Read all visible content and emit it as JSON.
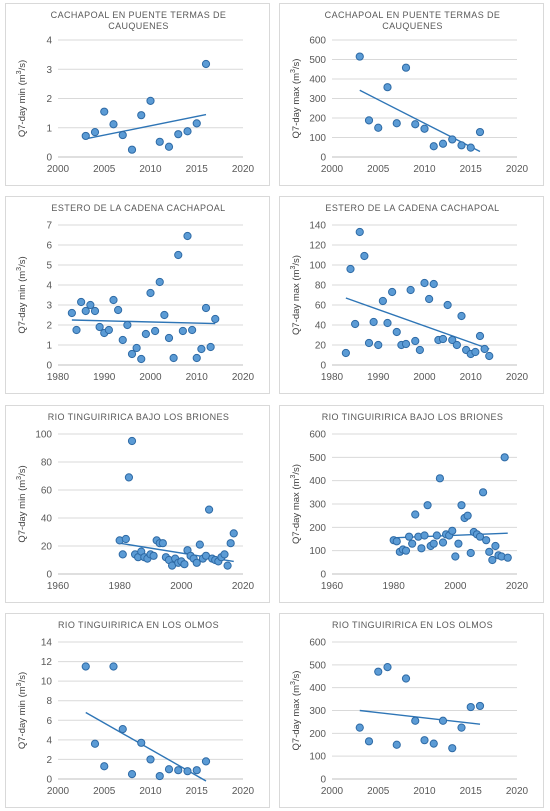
{
  "chart_data": [
    {
      "type": "scatter",
      "title_lines": [
        "CACHAPOAL EN PUENTE TERMAS DE",
        "CAUQUENES"
      ],
      "ylabel_prefix": "Q7-day min (m",
      "ylabel_sup": "3",
      "ylabel_suffix": "/s)",
      "xlim": [
        2000,
        2020
      ],
      "xticks": [
        "2000",
        "2005",
        "2010",
        "2015",
        "2020"
      ],
      "ylim": [
        0,
        4
      ],
      "yticks": [
        "0",
        "1",
        "2",
        "3",
        "4"
      ],
      "grid": true,
      "trendline": true,
      "points": [
        [
          2003,
          0.72
        ],
        [
          2004,
          0.85
        ],
        [
          2005,
          1.55
        ],
        [
          2006,
          1.12
        ],
        [
          2007,
          0.75
        ],
        [
          2008,
          0.25
        ],
        [
          2009,
          1.43
        ],
        [
          2010,
          1.92
        ],
        [
          2011,
          0.52
        ],
        [
          2012,
          0.35
        ],
        [
          2013,
          0.78
        ],
        [
          2014,
          0.88
        ],
        [
          2015,
          1.15
        ],
        [
          2016,
          3.18
        ]
      ],
      "trend": [
        [
          2003,
          0.62
        ],
        [
          2016,
          1.45
        ]
      ]
    },
    {
      "type": "scatter",
      "title_lines": [
        "CACHAPOAL EN PUENTE TERMAS DE",
        "CAUQUENES"
      ],
      "ylabel_prefix": "Q7-day max (m",
      "ylabel_sup": "3",
      "ylabel_suffix": "/s)",
      "xlim": [
        2000,
        2020
      ],
      "xticks": [
        "2000",
        "2005",
        "2010",
        "2015",
        "2020"
      ],
      "ylim": [
        0,
        600
      ],
      "yticks": [
        "0",
        "100",
        "200",
        "300",
        "400",
        "500",
        "600"
      ],
      "grid": true,
      "trendline": true,
      "points": [
        [
          2003,
          515
        ],
        [
          2004,
          188
        ],
        [
          2005,
          150
        ],
        [
          2006,
          358
        ],
        [
          2007,
          173
        ],
        [
          2008,
          458
        ],
        [
          2009,
          168
        ],
        [
          2010,
          145
        ],
        [
          2011,
          55
        ],
        [
          2012,
          68
        ],
        [
          2013,
          90
        ],
        [
          2014,
          60
        ],
        [
          2015,
          48
        ],
        [
          2016,
          128
        ]
      ],
      "trend": [
        [
          2003,
          342
        ],
        [
          2016,
          28
        ]
      ]
    },
    {
      "type": "scatter",
      "title_lines": [
        "ESTERO DE LA CADENA CACHAPOAL"
      ],
      "ylabel_prefix": "Q7-day min (m",
      "ylabel_sup": "3",
      "ylabel_suffix": "/s)",
      "xlim": [
        1980,
        2020
      ],
      "xticks": [
        "1980",
        "1990",
        "2000",
        "2010",
        "2020"
      ],
      "ylim": [
        0,
        7
      ],
      "yticks": [
        "0",
        "1",
        "2",
        "3",
        "4",
        "5",
        "6",
        "7"
      ],
      "grid": true,
      "trendline": true,
      "points": [
        [
          1983,
          2.6
        ],
        [
          1984,
          1.75
        ],
        [
          1985,
          3.15
        ],
        [
          1986,
          2.7
        ],
        [
          1987,
          3.0
        ],
        [
          1988,
          2.7
        ],
        [
          1989,
          1.9
        ],
        [
          1990,
          1.6
        ],
        [
          1991,
          1.75
        ],
        [
          1992,
          3.25
        ],
        [
          1993,
          2.75
        ],
        [
          1994,
          1.25
        ],
        [
          1995,
          2.0
        ],
        [
          1996,
          0.55
        ],
        [
          1997,
          0.85
        ],
        [
          1998,
          0.3
        ],
        [
          1999,
          1.55
        ],
        [
          2000,
          3.6
        ],
        [
          2001,
          1.7
        ],
        [
          2002,
          4.15
        ],
        [
          2003,
          2.5
        ],
        [
          2004,
          1.35
        ],
        [
          2005,
          0.35
        ],
        [
          2006,
          5.5
        ],
        [
          2007,
          1.7
        ],
        [
          2008,
          6.45
        ],
        [
          2009,
          1.75
        ],
        [
          2010,
          0.35
        ],
        [
          2011,
          0.8
        ],
        [
          2012,
          2.85
        ],
        [
          2013,
          0.9
        ],
        [
          2014,
          2.3
        ]
      ],
      "trend": [
        [
          1983,
          2.25
        ],
        [
          2014,
          2.07
        ]
      ]
    },
    {
      "type": "scatter",
      "title_lines": [
        "ESTERO DE LA CADENA CACHAPOAL"
      ],
      "ylabel_prefix": "Q7-day max (m",
      "ylabel_sup": "3",
      "ylabel_suffix": "/s)",
      "xlim": [
        1980,
        2020
      ],
      "xticks": [
        "1980",
        "1990",
        "2000",
        "2010",
        "2020"
      ],
      "ylim": [
        0,
        140
      ],
      "yticks": [
        "0",
        "20",
        "40",
        "60",
        "80",
        "100",
        "120",
        "140"
      ],
      "grid": true,
      "trendline": true,
      "points": [
        [
          1983,
          12
        ],
        [
          1984,
          96
        ],
        [
          1985,
          41
        ],
        [
          1986,
          133
        ],
        [
          1987,
          109
        ],
        [
          1988,
          22
        ],
        [
          1989,
          43
        ],
        [
          1990,
          20
        ],
        [
          1991,
          64
        ],
        [
          1992,
          42
        ],
        [
          1993,
          73
        ],
        [
          1994,
          33
        ],
        [
          1995,
          20
        ],
        [
          1996,
          21
        ],
        [
          1997,
          75
        ],
        [
          1998,
          24
        ],
        [
          1999,
          15
        ],
        [
          2000,
          82
        ],
        [
          2001,
          66
        ],
        [
          2002,
          81
        ],
        [
          2003,
          25
        ],
        [
          2004,
          26
        ],
        [
          2005,
          60
        ],
        [
          2006,
          25
        ],
        [
          2007,
          20
        ],
        [
          2008,
          49
        ],
        [
          2009,
          15
        ],
        [
          2010,
          11
        ],
        [
          2011,
          13
        ],
        [
          2012,
          29
        ],
        [
          2013,
          16
        ],
        [
          2014,
          9
        ]
      ],
      "trend": [
        [
          1983,
          67
        ],
        [
          2014,
          16
        ]
      ]
    },
    {
      "type": "scatter",
      "title_lines": [
        "RIO TINGUIRIRICA BAJO LOS BRIONES"
      ],
      "ylabel_prefix": "Q7-day min (m",
      "ylabel_sup": "3",
      "ylabel_suffix": "/s)",
      "xlim": [
        1960,
        2020
      ],
      "xticks": [
        "1960",
        "1980",
        "2000",
        "2020"
      ],
      "ylim": [
        0,
        100
      ],
      "yticks": [
        "0",
        "20",
        "40",
        "60",
        "80",
        "100"
      ],
      "grid": true,
      "trendline": true,
      "points": [
        [
          1980,
          24
        ],
        [
          1981,
          14
        ],
        [
          1982,
          25
        ],
        [
          1983,
          69
        ],
        [
          1984,
          95
        ],
        [
          1985,
          14
        ],
        [
          1986,
          12
        ],
        [
          1987,
          16
        ],
        [
          1988,
          12
        ],
        [
          1989,
          11
        ],
        [
          1990,
          14
        ],
        [
          1991,
          13
        ],
        [
          1992,
          24
        ],
        [
          1993,
          22
        ],
        [
          1994,
          22
        ],
        [
          1995,
          12
        ],
        [
          1996,
          10
        ],
        [
          1997,
          6
        ],
        [
          1998,
          11
        ],
        [
          1999,
          8
        ],
        [
          2000,
          9
        ],
        [
          2001,
          7
        ],
        [
          2002,
          17
        ],
        [
          2003,
          13
        ],
        [
          2004,
          11
        ],
        [
          2005,
          8
        ],
        [
          2006,
          21
        ],
        [
          2007,
          11
        ],
        [
          2008,
          13
        ],
        [
          2009,
          46
        ],
        [
          2010,
          11
        ],
        [
          2011,
          10
        ],
        [
          2012,
          9
        ],
        [
          2013,
          12
        ],
        [
          2014,
          14
        ],
        [
          2015,
          6
        ],
        [
          2016,
          22
        ],
        [
          2017,
          29
        ]
      ],
      "trend": [
        [
          1980,
          22
        ],
        [
          2017,
          9
        ]
      ]
    },
    {
      "type": "scatter",
      "title_lines": [
        "RIO TINGUIRIRICA BAJO LOS BRIONES"
      ],
      "ylabel_prefix": "Q7-day max (m",
      "ylabel_sup": "3",
      "ylabel_suffix": "/s)",
      "xlim": [
        1960,
        2020
      ],
      "xticks": [
        "1960",
        "1980",
        "2000",
        "2020"
      ],
      "ylim": [
        0,
        600
      ],
      "yticks": [
        "0",
        "100",
        "200",
        "300",
        "400",
        "500",
        "600"
      ],
      "grid": true,
      "trendline": true,
      "points": [
        [
          1980,
          145
        ],
        [
          1981,
          140
        ],
        [
          1982,
          95
        ],
        [
          1983,
          105
        ],
        [
          1984,
          100
        ],
        [
          1985,
          160
        ],
        [
          1986,
          130
        ],
        [
          1987,
          255
        ],
        [
          1988,
          160
        ],
        [
          1989,
          110
        ],
        [
          1990,
          165
        ],
        [
          1991,
          295
        ],
        [
          1992,
          120
        ],
        [
          1993,
          130
        ],
        [
          1994,
          165
        ],
        [
          1995,
          410
        ],
        [
          1996,
          135
        ],
        [
          1997,
          170
        ],
        [
          1998,
          165
        ],
        [
          1999,
          185
        ],
        [
          2000,
          75
        ],
        [
          2001,
          130
        ],
        [
          2002,
          295
        ],
        [
          2003,
          240
        ],
        [
          2004,
          250
        ],
        [
          2005,
          90
        ],
        [
          2006,
          180
        ],
        [
          2007,
          170
        ],
        [
          2008,
          160
        ],
        [
          2009,
          350
        ],
        [
          2010,
          145
        ],
        [
          2011,
          95
        ],
        [
          2012,
          60
        ],
        [
          2013,
          120
        ],
        [
          2014,
          80
        ],
        [
          2015,
          75
        ],
        [
          2016,
          500
        ],
        [
          2017,
          70
        ]
      ],
      "trend": [
        [
          1980,
          155
        ],
        [
          2017,
          175
        ]
      ]
    },
    {
      "type": "scatter",
      "title_lines": [
        "RIO TINGUIRIRICA EN LOS OLMOS"
      ],
      "ylabel_prefix": "Q7-day min (m",
      "ylabel_sup": "3",
      "ylabel_suffix": "/s)",
      "xlim": [
        2000,
        2020
      ],
      "xticks": [
        "2000",
        "2005",
        "2010",
        "2015",
        "2020"
      ],
      "ylim": [
        0,
        14
      ],
      "yticks": [
        "0",
        "2",
        "4",
        "6",
        "8",
        "10",
        "12",
        "14"
      ],
      "grid": true,
      "trendline": true,
      "points": [
        [
          2003,
          11.5
        ],
        [
          2004,
          3.6
        ],
        [
          2005,
          1.3
        ],
        [
          2006,
          11.5
        ],
        [
          2007,
          5.1
        ],
        [
          2008,
          0.5
        ],
        [
          2009,
          3.7
        ],
        [
          2010,
          2.0
        ],
        [
          2011,
          0.3
        ],
        [
          2012,
          1.0
        ],
        [
          2013,
          0.9
        ],
        [
          2014,
          0.8
        ],
        [
          2015,
          0.9
        ],
        [
          2016,
          1.8
        ]
      ],
      "trend": [
        [
          2003,
          6.8
        ],
        [
          2016,
          -0.2
        ]
      ]
    },
    {
      "type": "scatter",
      "title_lines": [
        "RIO TINGUIRIRICA EN LOS OLMOS"
      ],
      "ylabel_prefix": "Q7-day max (m",
      "ylabel_sup": "3",
      "ylabel_suffix": "/s)",
      "xlim": [
        2000,
        2020
      ],
      "xticks": [
        "2000",
        "2005",
        "2010",
        "2015",
        "2020"
      ],
      "ylim": [
        0,
        600
      ],
      "yticks": [
        "0",
        "100",
        "200",
        "300",
        "400",
        "500",
        "600"
      ],
      "grid": true,
      "trendline": true,
      "points": [
        [
          2003,
          225
        ],
        [
          2004,
          165
        ],
        [
          2005,
          470
        ],
        [
          2006,
          490
        ],
        [
          2007,
          150
        ],
        [
          2008,
          440
        ],
        [
          2009,
          255
        ],
        [
          2010,
          170
        ],
        [
          2011,
          155
        ],
        [
          2012,
          255
        ],
        [
          2013,
          135
        ],
        [
          2014,
          225
        ],
        [
          2015,
          315
        ],
        [
          2016,
          320
        ]
      ],
      "trend": [
        [
          2003,
          300
        ],
        [
          2016,
          240
        ]
      ]
    }
  ]
}
